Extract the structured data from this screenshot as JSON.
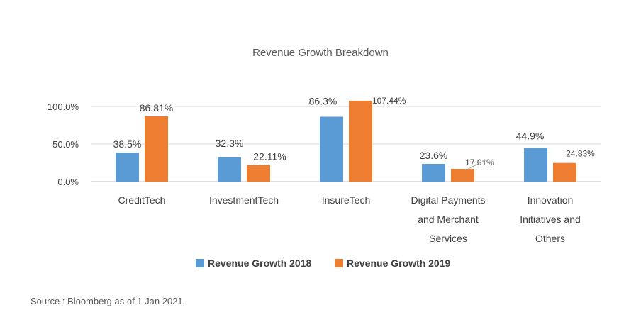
{
  "chart_data": {
    "type": "bar",
    "title": "Revenue Growth Breakdown",
    "xlabel": "",
    "ylabel": "",
    "ylim": [
      0,
      100
    ],
    "yticks": [
      0,
      50,
      100
    ],
    "ytick_labels": [
      "0.0%",
      "50.0%",
      "100.0%"
    ],
    "grid": true,
    "legend_position": "bottom-center",
    "categories": [
      [
        "CreditTech"
      ],
      [
        "InvestmentTech"
      ],
      [
        "InsureTech"
      ],
      [
        "Digital Payments",
        "and Merchant",
        "Services"
      ],
      [
        "Innovation",
        "Initiatives and",
        "Others"
      ]
    ],
    "series": [
      {
        "name": "Revenue Growth 2018",
        "color": "#5b9bd5",
        "values": [
          38.5,
          32.3,
          86.3,
          23.6,
          44.9
        ],
        "labels": [
          "38.5%",
          "32.3%",
          "86.3%",
          "23.6%",
          "44.9%"
        ]
      },
      {
        "name": "Revenue Growth 2019",
        "color": "#ed7d31",
        "values": [
          86.81,
          22.11,
          107.44,
          17.01,
          24.83
        ],
        "labels": [
          "86.81%",
          "22.11%",
          "107.44%",
          "17.01%",
          "24.83%"
        ]
      }
    ]
  },
  "source": "Source : Bloomberg as of 1 Jan 2021"
}
